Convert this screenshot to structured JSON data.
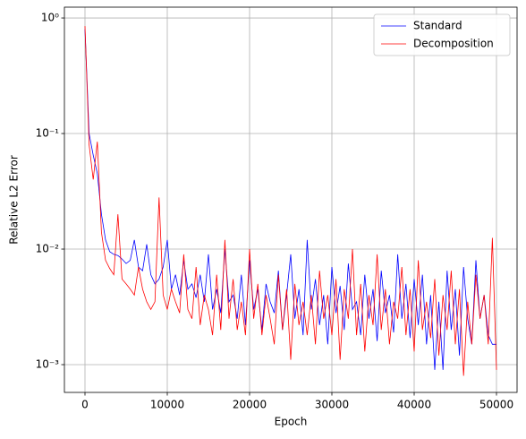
{
  "chart_data": {
    "type": "line",
    "xlabel": "Epoch",
    "ylabel": "Relative L2 Error",
    "xlim": [
      -2500,
      52500
    ],
    "xticks": [
      0,
      10000,
      20000,
      30000,
      40000,
      50000
    ],
    "ylim": [
      0.000575,
      1.24
    ],
    "ylog": true,
    "yticks": [
      {
        "value": 0.001,
        "label": "10⁻³"
      },
      {
        "value": 0.01,
        "label": "10⁻²"
      },
      {
        "value": 0.1,
        "label": "10⁻¹"
      },
      {
        "value": 1,
        "label": "10⁰"
      }
    ],
    "grid": true,
    "legend": "upper right",
    "x": [
      0,
      500,
      1000,
      1500,
      2000,
      2500,
      3000,
      3500,
      4000,
      4500,
      5000,
      5500,
      6000,
      6500,
      7000,
      7500,
      8000,
      8500,
      9000,
      9500,
      10000,
      10500,
      11000,
      11500,
      12000,
      12500,
      13000,
      13500,
      14000,
      14500,
      15000,
      15500,
      16000,
      16500,
      17000,
      17500,
      18000,
      18500,
      19000,
      19500,
      20000,
      20500,
      21000,
      21500,
      22000,
      22500,
      23000,
      23500,
      24000,
      24500,
      25000,
      25500,
      26000,
      26500,
      27000,
      27500,
      28000,
      28500,
      29000,
      29500,
      30000,
      30500,
      31000,
      31500,
      32000,
      32500,
      33000,
      33500,
      34000,
      34500,
      35000,
      35500,
      36000,
      36500,
      37000,
      37500,
      38000,
      38500,
      39000,
      39500,
      40000,
      40500,
      41000,
      41500,
      42000,
      42500,
      43000,
      43500,
      44000,
      44500,
      45000,
      45500,
      46000,
      46500,
      47000,
      47500,
      48000,
      48500,
      49000,
      49500,
      50000
    ],
    "series": [
      {
        "name": "Standard",
        "color": "#0000ff",
        "values": [
          0.8,
          0.1,
          0.065,
          0.045,
          0.02,
          0.012,
          0.0095,
          0.009,
          0.0088,
          0.0082,
          0.0075,
          0.008,
          0.012,
          0.007,
          0.0065,
          0.011,
          0.006,
          0.005,
          0.0055,
          0.007,
          0.012,
          0.0045,
          0.006,
          0.004,
          0.008,
          0.0045,
          0.005,
          0.0038,
          0.006,
          0.0035,
          0.009,
          0.003,
          0.0045,
          0.0028,
          0.01,
          0.0035,
          0.004,
          0.0025,
          0.006,
          0.0022,
          0.008,
          0.003,
          0.0045,
          0.002,
          0.005,
          0.0035,
          0.0028,
          0.0065,
          0.002,
          0.004,
          0.009,
          0.0025,
          0.0045,
          0.0018,
          0.012,
          0.003,
          0.0055,
          0.0022,
          0.004,
          0.0015,
          0.007,
          0.0028,
          0.0048,
          0.002,
          0.0075,
          0.003,
          0.0035,
          0.0018,
          0.006,
          0.0025,
          0.0045,
          0.0016,
          0.0065,
          0.0028,
          0.004,
          0.0019,
          0.009,
          0.0025,
          0.005,
          0.0017,
          0.0055,
          0.0022,
          0.006,
          0.0015,
          0.004,
          0.0009,
          0.0035,
          0.0009,
          0.0065,
          0.002,
          0.0045,
          0.0012,
          0.007,
          0.0025,
          0.0015,
          0.008,
          0.0025,
          0.004,
          0.0018,
          0.0015,
          0.0015
        ]
      },
      {
        "name": "Decomposition",
        "color": "#ff0000",
        "values": [
          0.85,
          0.08,
          0.04,
          0.085,
          0.014,
          0.008,
          0.0068,
          0.006,
          0.02,
          0.0055,
          0.005,
          0.0045,
          0.004,
          0.007,
          0.0045,
          0.0035,
          0.003,
          0.0035,
          0.028,
          0.004,
          0.003,
          0.0045,
          0.0035,
          0.0028,
          0.009,
          0.003,
          0.0025,
          0.007,
          0.0022,
          0.004,
          0.003,
          0.0018,
          0.006,
          0.002,
          0.012,
          0.0025,
          0.0055,
          0.002,
          0.0035,
          0.0018,
          0.01,
          0.0025,
          0.005,
          0.0018,
          0.004,
          0.0025,
          0.0015,
          0.006,
          0.002,
          0.0045,
          0.0011,
          0.005,
          0.0022,
          0.0035,
          0.0018,
          0.004,
          0.0015,
          0.0065,
          0.0025,
          0.004,
          0.0018,
          0.0055,
          0.0011,
          0.0045,
          0.0025,
          0.01,
          0.0018,
          0.005,
          0.0013,
          0.004,
          0.0022,
          0.009,
          0.002,
          0.0045,
          0.0015,
          0.0035,
          0.0025,
          0.007,
          0.0018,
          0.0045,
          0.0013,
          0.008,
          0.002,
          0.0035,
          0.0017,
          0.0055,
          0.0012,
          0.004,
          0.002,
          0.0065,
          0.0015,
          0.0045,
          0.0008,
          0.0035,
          0.0015,
          0.006,
          0.0025,
          0.004,
          0.0015,
          0.0125,
          0.0009
        ]
      }
    ]
  }
}
